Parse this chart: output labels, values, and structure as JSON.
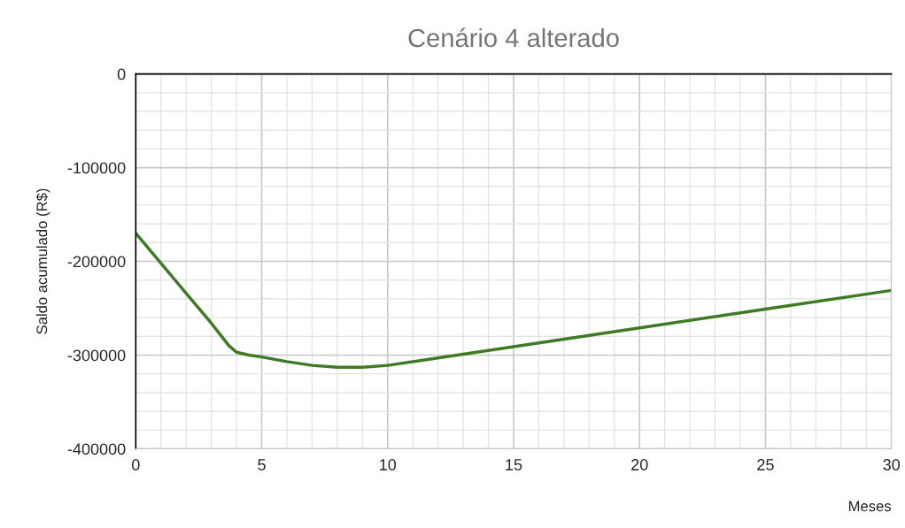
{
  "chart_data": {
    "type": "line",
    "title": "Cenário 4 alterado",
    "xlabel": "Meses",
    "ylabel": "Saldo acumulado (R$)",
    "x": [
      0,
      1,
      2,
      3,
      3.7,
      4,
      4.5,
      5,
      6,
      7,
      8,
      9,
      10,
      12,
      15,
      20,
      25,
      30
    ],
    "series": [
      {
        "color": "#3f7a25",
        "values": [
          -170000,
          -202000,
          -234000,
          -266000,
          -290000,
          -297000,
          -300000,
          -302000,
          -307000,
          -311000,
          -313000,
          -313000,
          -311000,
          -303000,
          -291000,
          -271000,
          -251000,
          -231000
        ]
      }
    ],
    "xlim": [
      0,
      30
    ],
    "ylim": [
      -400000,
      0
    ],
    "xticks": [
      0,
      {
        "value": 1,
        "label": null
      },
      {
        "value": 2,
        "label": null
      },
      {
        "value": 3,
        "label": null
      },
      {
        "value": 4,
        "label": null
      },
      5,
      {
        "value": 6,
        "label": null
      },
      {
        "value": 7,
        "label": null
      },
      {
        "value": 8,
        "label": null
      },
      {
        "value": 9,
        "label": null
      },
      10,
      {
        "value": 11,
        "label": null
      },
      {
        "value": 12,
        "label": null
      },
      {
        "value": 13,
        "label": null
      },
      {
        "value": 14,
        "label": null
      },
      15,
      {
        "value": 16,
        "label": null
      },
      {
        "value": 17,
        "label": null
      },
      {
        "value": 18,
        "label": null
      },
      {
        "value": 19,
        "label": null
      },
      20,
      {
        "value": 21,
        "label": null
      },
      {
        "value": 22,
        "label": null
      },
      {
        "value": 23,
        "label": null
      },
      {
        "value": 24,
        "label": null
      },
      25,
      {
        "value": 26,
        "label": null
      },
      {
        "value": 27,
        "label": null
      },
      {
        "value": 28,
        "label": null
      },
      {
        "value": 29,
        "label": null
      },
      30
    ],
    "yticks": [
      -400000,
      {
        "value": -380000,
        "label": null
      },
      {
        "value": -360000,
        "label": null
      },
      {
        "value": -340000,
        "label": null
      },
      {
        "value": -320000,
        "label": null
      },
      -300000,
      {
        "value": -280000,
        "label": null
      },
      {
        "value": -260000,
        "label": null
      },
      {
        "value": -240000,
        "label": null
      },
      {
        "value": -220000,
        "label": null
      },
      -200000,
      {
        "value": -180000,
        "label": null
      },
      {
        "value": -160000,
        "label": null
      },
      {
        "value": -140000,
        "label": null
      },
      {
        "value": -120000,
        "label": null
      },
      -100000,
      {
        "value": -80000,
        "label": null
      },
      {
        "value": -60000,
        "label": null
      },
      {
        "value": -40000,
        "label": null
      },
      {
        "value": -20000,
        "label": null
      },
      0
    ],
    "grid": true,
    "marker": "none",
    "line_style": "solid"
  }
}
